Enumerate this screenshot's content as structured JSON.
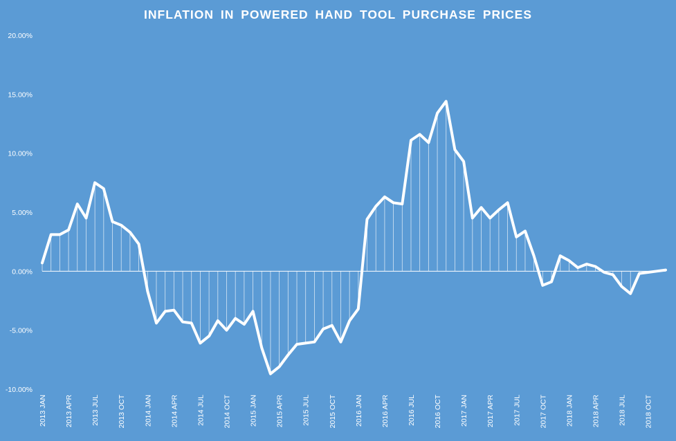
{
  "chart_data": {
    "type": "line",
    "title": "INFLATION  IN  POWERED  HAND  TOOL  PURCHASE  PRICES",
    "xlabel": "",
    "ylabel": "",
    "ylim": [
      -0.1,
      0.2
    ],
    "yticks": [
      -0.1,
      -0.05,
      0.0,
      0.05,
      0.1,
      0.15,
      0.2
    ],
    "ytick_labels": [
      "-10.00%",
      "-5.00%",
      "0.00%",
      "5.00%",
      "10.00%",
      "15.00%",
      "20.00%"
    ],
    "grid": false,
    "legend": "none",
    "drop_lines": true,
    "line_color": "#ffffff",
    "background_color": "#5b9bd5",
    "zero_line_color": "#ffffff",
    "x_labels": [
      "2013 JAN",
      "2013 APR",
      "2013 JUL",
      "2013 OCT",
      "2014 JAN",
      "2014 APR",
      "2014 JUL",
      "2014 OCT",
      "2015 JAN",
      "2015 APR",
      "2015 JUL",
      "2015 OCT",
      "2016 JAN",
      "2016 APR",
      "2016 JUL",
      "2016 OCT",
      "2017 JAN",
      "2017 APR",
      "2017 JUL",
      "2017 OCT",
      "2018 JAN",
      "2018 APR",
      "2018 JUL",
      "2018 OCT"
    ],
    "x_label_step": 3,
    "series": [
      {
        "values": [
          0.007,
          0.031,
          0.031,
          0.035,
          0.057,
          0.045,
          0.075,
          0.07,
          0.042,
          0.039,
          0.033,
          0.023,
          -0.017,
          -0.044,
          -0.034,
          -0.033,
          -0.043,
          -0.044,
          -0.061,
          -0.055,
          -0.042,
          -0.05,
          -0.04,
          -0.045,
          -0.034,
          -0.065,
          -0.087,
          -0.081,
          -0.071,
          -0.062,
          -0.061,
          -0.06,
          -0.049,
          -0.046,
          -0.06,
          -0.042,
          -0.032,
          0.044,
          0.055,
          0.063,
          0.058,
          0.057,
          0.111,
          0.116,
          0.109,
          0.134,
          0.144,
          0.103,
          0.093,
          0.045,
          0.054,
          0.045,
          0.052,
          0.058,
          0.029,
          0.034,
          0.013,
          -0.012,
          -0.009,
          0.013,
          0.009,
          0.003,
          0.006,
          0.004,
          -0.001,
          -0.003,
          -0.013,
          -0.019,
          -0.002,
          -0.001,
          0.0,
          0.001
        ]
      }
    ]
  }
}
